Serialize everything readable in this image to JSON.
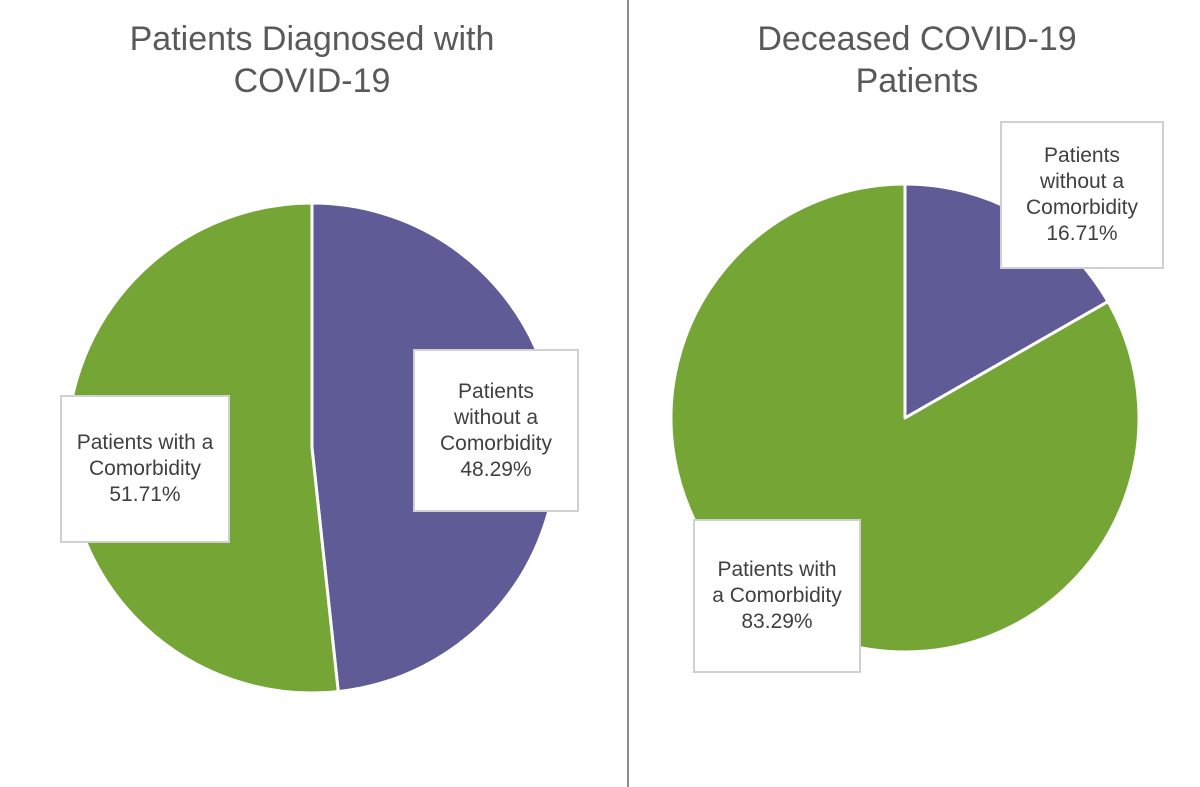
{
  "chart_data": [
    {
      "type": "pie",
      "title_lines": [
        "Patients Diagnosed with",
        "COVID-19"
      ],
      "slices": [
        {
          "label_lines": [
            "Patients",
            "without a",
            "Comorbidity"
          ],
          "value": 48.29,
          "value_text": "48.29%",
          "color": "#5f5b97"
        },
        {
          "label_lines": [
            "Patients with a",
            "Comorbidity"
          ],
          "value": 51.71,
          "value_text": "51.71%",
          "color": "#74a535"
        }
      ]
    },
    {
      "type": "pie",
      "title_lines": [
        "Deceased COVID-19",
        "Patients"
      ],
      "slices": [
        {
          "label_lines": [
            "Patients",
            "without a",
            "Comorbidity"
          ],
          "value": 16.71,
          "value_text": "16.71%",
          "color": "#5f5b97"
        },
        {
          "label_lines": [
            "Patients with",
            "a Comorbidity"
          ],
          "value": 83.29,
          "value_text": "83.29%",
          "color": "#74a535"
        }
      ]
    }
  ]
}
